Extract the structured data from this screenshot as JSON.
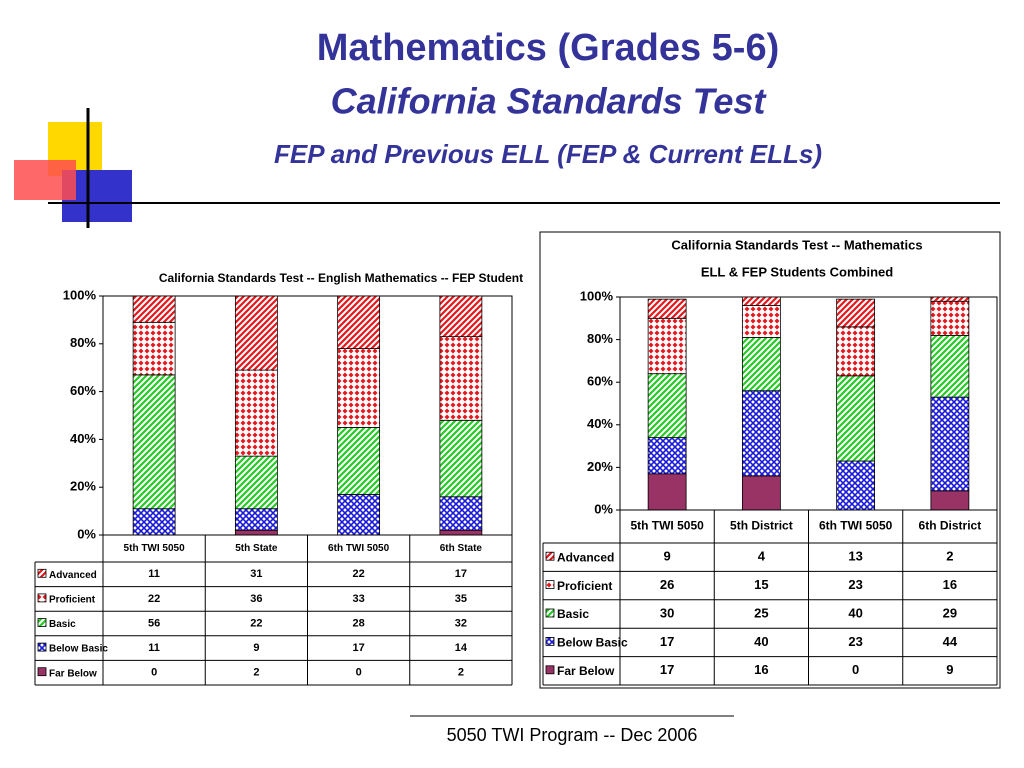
{
  "header": {
    "title": "Mathematics (Grades 5-6)",
    "subtitle": "California Standards Test",
    "tagline": "FEP and Previous ELL (FEP & Current ELLs)"
  },
  "footer": "5050 TWI Program -- Dec 2006",
  "chart_data": [
    {
      "type": "stacked_bar",
      "title": "California Standards Test -- English Mathematics -- FEP Student",
      "categories": [
        "5th TWI 5050",
        "5th State",
        "6th TWI 5050",
        "6th State"
      ],
      "series": [
        {
          "name": "Advanced",
          "color": "#e8151b",
          "values": [
            11,
            31,
            22,
            17
          ]
        },
        {
          "name": "Proficient",
          "color": "#e8151b",
          "values": [
            22,
            36,
            33,
            35
          ]
        },
        {
          "name": "Basic",
          "color": "#22cc22",
          "values": [
            56,
            22,
            28,
            32
          ]
        },
        {
          "name": "Below Basic",
          "color": "#1a1ad6",
          "values": [
            11,
            9,
            17,
            14
          ]
        },
        {
          "name": "Far Below",
          "color": "#993366",
          "values": [
            0,
            2,
            0,
            2
          ]
        }
      ],
      "ylim": [
        0,
        100
      ],
      "yticks": [
        {
          "value": 0,
          "label": "0%"
        },
        {
          "value": 20,
          "label": "20%"
        },
        {
          "value": 40,
          "label": "40%"
        },
        {
          "value": 60,
          "label": "60%"
        },
        {
          "value": 80,
          "label": "80%"
        },
        {
          "value": 100,
          "label": "100%"
        }
      ]
    },
    {
      "type": "stacked_bar",
      "title": "California Standards Test -- Mathematics",
      "subtitle": "ELL & FEP Students Combined",
      "categories": [
        "5th TWI 5050",
        "5th District",
        "6th TWI 5050",
        "6th District"
      ],
      "series": [
        {
          "name": "Advanced",
          "color": "#e8151b",
          "values": [
            9,
            4,
            13,
            2
          ]
        },
        {
          "name": "Proficient",
          "color": "#e8151b",
          "values": [
            26,
            15,
            23,
            16
          ]
        },
        {
          "name": "Basic",
          "color": "#22cc22",
          "values": [
            30,
            25,
            40,
            29
          ]
        },
        {
          "name": "Below Basic",
          "color": "#1a1ad6",
          "values": [
            17,
            40,
            23,
            44
          ]
        },
        {
          "name": "Far Below",
          "color": "#993366",
          "values": [
            17,
            16,
            0,
            9
          ]
        }
      ],
      "ylim": [
        0,
        100
      ],
      "yticks": [
        {
          "value": 0,
          "label": "0%"
        },
        {
          "value": 20,
          "label": "20%"
        },
        {
          "value": 40,
          "label": "40%"
        },
        {
          "value": 60,
          "label": "60%"
        },
        {
          "value": 80,
          "label": "80%"
        },
        {
          "value": 100,
          "label": "100%"
        }
      ]
    }
  ]
}
